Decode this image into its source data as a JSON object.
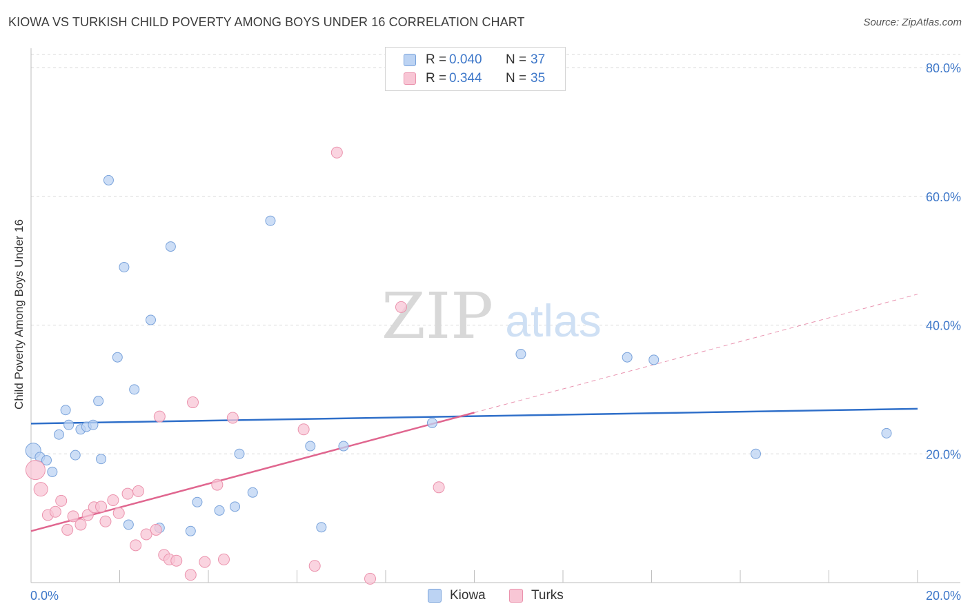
{
  "title": "KIOWA VS TURKISH CHILD POVERTY AMONG BOYS UNDER 16 CORRELATION CHART",
  "source": "Source: ZipAtlas.com",
  "watermark": {
    "zip": "ZIP",
    "atlas": "atlas"
  },
  "colors": {
    "kiowa_fill": "#bcd3f3",
    "kiowa_stroke": "#7aa3db",
    "kiowa_line": "#2f6fc9",
    "turks_fill": "#f8c6d5",
    "turks_stroke": "#eb93ad",
    "turks_line": "#e0668f",
    "axis_text": "#3d77c9",
    "grid": "#d9d9d9"
  },
  "legend": {
    "rows": [
      {
        "series": "Kiowa",
        "r_label": "R =",
        "r_value": "0.040",
        "n_label": "N =",
        "n_value": "37"
      },
      {
        "series": "Turks",
        "r_label": "R =",
        "r_value": "0.344",
        "n_label": "N =",
        "n_value": "35"
      }
    ],
    "bottom": [
      "Kiowa",
      "Turks"
    ]
  },
  "chart_data": {
    "type": "scatter",
    "title": "KIOWA VS TURKISH CHILD POVERTY AMONG BOYS UNDER 16 CORRELATION CHART",
    "xlabel": "",
    "ylabel": "Child Poverty Among Boys Under 16",
    "xlim": [
      0,
      20
    ],
    "ylim": [
      0,
      83
    ],
    "x_ticks": [
      {
        "value": 0,
        "label": "0.0%"
      },
      {
        "value": 20,
        "label": "20.0%"
      }
    ],
    "y_ticks": [
      {
        "value": 20,
        "label": "20.0%"
      },
      {
        "value": 40,
        "label": "40.0%"
      },
      {
        "value": 60,
        "label": "60.0%"
      },
      {
        "value": 80,
        "label": "80.0%"
      }
    ],
    "series": [
      {
        "name": "Kiowa",
        "r": 0.04,
        "n": 37,
        "trend": {
          "x0": 0,
          "y0": 24.7,
          "x1": 20,
          "y1": 27.0,
          "dashed_from": null
        },
        "points": [
          [
            0.05,
            20.5,
            22
          ],
          [
            0.2,
            19.5,
            14
          ],
          [
            0.35,
            19.0,
            14
          ],
          [
            0.48,
            17.2,
            14
          ],
          [
            0.63,
            23.0,
            14
          ],
          [
            0.78,
            26.8,
            14
          ],
          [
            0.85,
            24.5,
            14
          ],
          [
            1.0,
            19.8,
            14
          ],
          [
            1.12,
            23.8,
            14
          ],
          [
            1.25,
            24.2,
            14
          ],
          [
            1.4,
            24.5,
            14
          ],
          [
            1.52,
            28.2,
            14
          ],
          [
            1.58,
            19.2,
            14
          ],
          [
            1.75,
            62.5,
            14
          ],
          [
            1.95,
            35.0,
            14
          ],
          [
            2.1,
            49.0,
            14
          ],
          [
            2.2,
            9.0,
            14
          ],
          [
            2.33,
            30.0,
            14
          ],
          [
            2.7,
            40.8,
            14
          ],
          [
            2.9,
            8.5,
            14
          ],
          [
            3.15,
            52.2,
            14
          ],
          [
            3.6,
            8.0,
            14
          ],
          [
            3.75,
            12.5,
            14
          ],
          [
            4.25,
            11.2,
            14
          ],
          [
            4.6,
            11.8,
            14
          ],
          [
            4.7,
            20.0,
            14
          ],
          [
            5.0,
            14.0,
            14
          ],
          [
            5.4,
            56.2,
            14
          ],
          [
            6.3,
            21.2,
            14
          ],
          [
            6.55,
            8.6,
            14
          ],
          [
            7.05,
            21.2,
            14
          ],
          [
            9.05,
            24.8,
            14
          ],
          [
            11.05,
            35.5,
            14
          ],
          [
            13.45,
            35.0,
            14
          ],
          [
            14.05,
            34.6,
            14
          ],
          [
            16.35,
            20.0,
            14
          ],
          [
            19.3,
            23.2,
            14
          ]
        ]
      },
      {
        "name": "Turks",
        "r": 0.344,
        "n": 35,
        "trend": {
          "x0": 0,
          "y0": 8.0,
          "x1": 20,
          "y1": 44.8,
          "dashed_from": 10.0
        },
        "points": [
          [
            0.1,
            17.5,
            28
          ],
          [
            0.22,
            14.5,
            20
          ],
          [
            0.38,
            10.5,
            16
          ],
          [
            0.55,
            11.0,
            16
          ],
          [
            0.68,
            12.7,
            16
          ],
          [
            0.82,
            8.2,
            16
          ],
          [
            0.95,
            10.3,
            16
          ],
          [
            1.12,
            9.0,
            16
          ],
          [
            1.28,
            10.5,
            16
          ],
          [
            1.42,
            11.7,
            16
          ],
          [
            1.58,
            11.8,
            16
          ],
          [
            1.68,
            9.5,
            16
          ],
          [
            1.85,
            12.8,
            16
          ],
          [
            1.98,
            10.8,
            16
          ],
          [
            2.18,
            13.8,
            16
          ],
          [
            2.36,
            5.8,
            16
          ],
          [
            2.42,
            14.2,
            16
          ],
          [
            2.6,
            7.5,
            16
          ],
          [
            2.82,
            8.2,
            16
          ],
          [
            2.9,
            25.8,
            16
          ],
          [
            3.0,
            4.3,
            16
          ],
          [
            3.12,
            3.6,
            16
          ],
          [
            3.28,
            3.4,
            16
          ],
          [
            3.6,
            1.2,
            16
          ],
          [
            3.65,
            28.0,
            16
          ],
          [
            3.92,
            3.2,
            16
          ],
          [
            4.2,
            15.2,
            16
          ],
          [
            4.35,
            3.6,
            16
          ],
          [
            4.55,
            25.6,
            16
          ],
          [
            6.15,
            23.8,
            16
          ],
          [
            6.4,
            2.6,
            16
          ],
          [
            6.9,
            66.8,
            16
          ],
          [
            7.65,
            0.6,
            16
          ],
          [
            8.35,
            42.8,
            16
          ],
          [
            9.2,
            14.8,
            16
          ]
        ]
      }
    ]
  }
}
